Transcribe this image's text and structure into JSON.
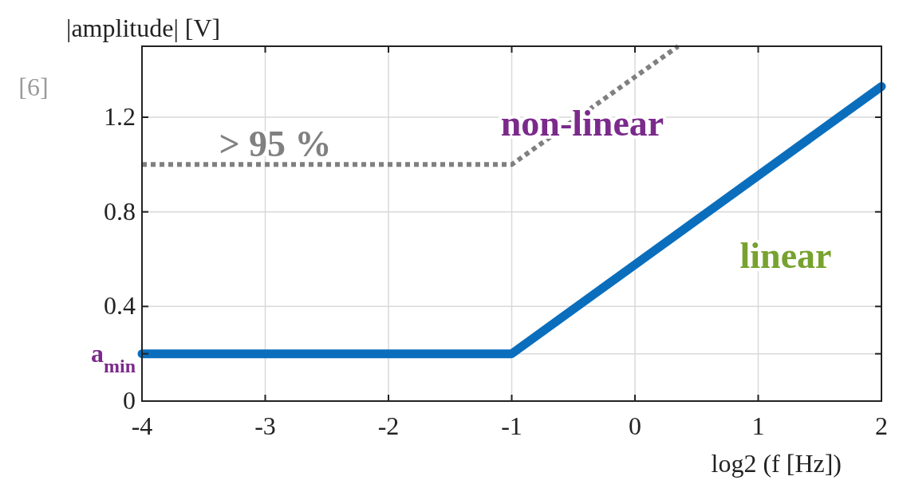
{
  "chart_data": {
    "type": "line",
    "xlabel": "log2 (f [Hz])",
    "ylabel": "|amplitude| [V]",
    "xlim": [
      -4,
      2
    ],
    "ylim": [
      0,
      1.5
    ],
    "xticks": [
      -4,
      -3,
      -2,
      -1,
      0,
      1,
      2
    ],
    "yticks": [
      0,
      {
        "value": 0.2,
        "label": "a$_{min}$"
      },
      0.4,
      0.8,
      1.2
    ],
    "grid": true,
    "marker": "none",
    "series": [
      {
        "x": [
          -4,
          -1,
          2
        ],
        "values": [
          0.2,
          0.2,
          1.33
        ],
        "color": "#0a6ebd",
        "line_style": "solid"
      },
      {
        "x": [
          -4,
          -1,
          0.35
        ],
        "values": [
          1,
          1,
          1.5
        ],
        "color": "#808080",
        "line_style": "dotted"
      }
    ],
    "annotations": [
      "[6]",
      "> 95 %",
      "non-linear",
      "linear"
    ]
  }
}
